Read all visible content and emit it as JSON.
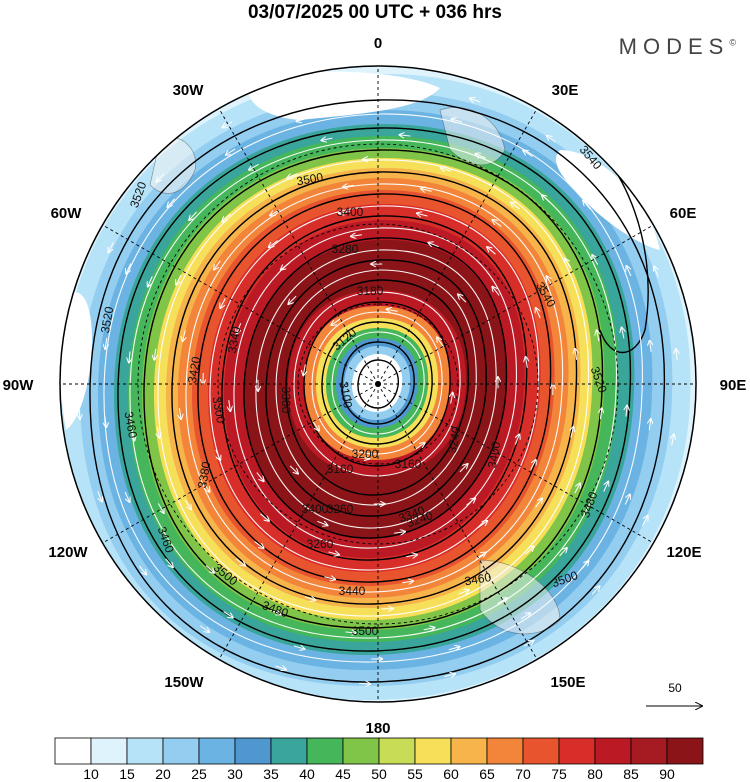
{
  "header": {
    "title": "03/07/2025  00 UTC  + 036 hrs",
    "brand": "MODES",
    "brand_mark": "©"
  },
  "map": {
    "projection": "polar-stereographic-south",
    "longitude_labels": [
      "0",
      "30E",
      "60E",
      "90E",
      "120E",
      "150E",
      "180",
      "150W",
      "120W",
      "90W",
      "60W",
      "30W"
    ],
    "contour_labels": [
      "3540",
      "3540",
      "3520",
      "3520",
      "3520",
      "3500",
      "3500",
      "3500",
      "3480",
      "3480",
      "3460",
      "3460",
      "3440",
      "3420",
      "3400",
      "3400",
      "3380",
      "3340",
      "3340",
      "3300",
      "3300",
      "3280",
      "3260",
      "3260",
      "3240",
      "3240",
      "3200",
      "3180",
      "3160",
      "3160",
      "3120",
      "3100",
      "3400",
      "3500",
      "3460"
    ],
    "vector_reference": "50"
  },
  "colorbar": {
    "labels": [
      "10",
      "15",
      "20",
      "25",
      "30",
      "35",
      "40",
      "45",
      "50",
      "55",
      "60",
      "65",
      "70",
      "75",
      "80",
      "85",
      "90"
    ],
    "colors": [
      "#ffffff",
      "#dff3fd",
      "#b7e3f8",
      "#93cdf0",
      "#6bb3e2",
      "#4f97cf",
      "#3aa59a",
      "#46b65a",
      "#80c548",
      "#c8dc55",
      "#f6e05a",
      "#f6b44a",
      "#f3853a",
      "#e8542e",
      "#d82e2a",
      "#bb1a25",
      "#a61a22",
      "#8a1418"
    ]
  }
}
